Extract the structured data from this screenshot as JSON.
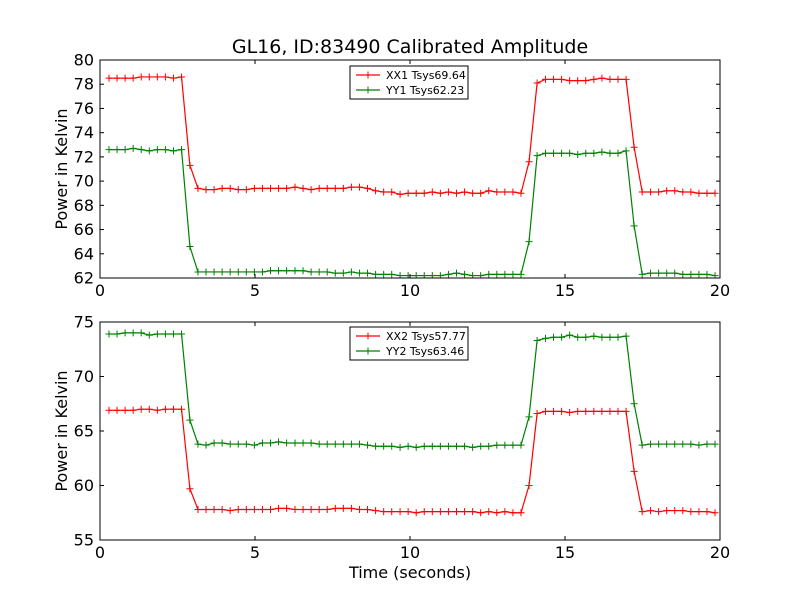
{
  "title": "GL16, ID:83490 Calibrated Amplitude",
  "chart_data": [
    {
      "type": "line",
      "xlabel": "",
      "ylabel": "Power in Kelvin",
      "xlim": [
        0,
        20
      ],
      "ylim": [
        62,
        80
      ],
      "xticks": [
        "0",
        "5",
        "10",
        "15",
        "20"
      ],
      "yticks": [
        "62",
        "64",
        "66",
        "68",
        "70",
        "72",
        "74",
        "76",
        "78",
        "80"
      ],
      "xtick_values": [
        0,
        5,
        10,
        15,
        20
      ],
      "ytick_values": [
        62,
        64,
        66,
        68,
        70,
        72,
        74,
        76,
        78,
        80
      ],
      "legend": "upper center",
      "series": [
        {
          "name": "XX1 Tsys69.64",
          "color": "#ff0000",
          "x": [
            0.29,
            0.55,
            0.81,
            1.07,
            1.33,
            1.59,
            1.85,
            2.11,
            2.37,
            2.63,
            2.9,
            3.16,
            3.42,
            3.68,
            3.94,
            4.2,
            4.46,
            4.72,
            4.98,
            5.24,
            5.5,
            5.76,
            6.02,
            6.29,
            6.55,
            6.81,
            7.07,
            7.33,
            7.59,
            7.85,
            8.11,
            8.37,
            8.63,
            8.89,
            9.15,
            9.41,
            9.68,
            9.94,
            10.2,
            10.46,
            10.72,
            10.98,
            11.24,
            11.5,
            11.76,
            12.02,
            12.28,
            12.54,
            12.8,
            13.06,
            13.32,
            13.58,
            13.84,
            14.1,
            14.37,
            14.63,
            14.89,
            15.15,
            15.41,
            15.67,
            15.93,
            16.19,
            16.45,
            16.71,
            16.97,
            17.23,
            17.49,
            17.76,
            18.02,
            18.28,
            18.54,
            18.8,
            19.06,
            19.32,
            19.58,
            19.84
          ],
          "y": [
            78.5,
            78.5,
            78.5,
            78.5,
            78.6,
            78.6,
            78.6,
            78.6,
            78.5,
            78.6,
            71.3,
            69.4,
            69.3,
            69.3,
            69.4,
            69.4,
            69.3,
            69.3,
            69.4,
            69.4,
            69.4,
            69.4,
            69.4,
            69.5,
            69.4,
            69.3,
            69.4,
            69.4,
            69.4,
            69.4,
            69.5,
            69.5,
            69.4,
            69.2,
            69.1,
            69.1,
            68.9,
            69.0,
            69.0,
            69.0,
            69.1,
            69.0,
            69.1,
            69.0,
            69.1,
            69.0,
            69.0,
            69.2,
            69.1,
            69.1,
            69.1,
            69.0,
            71.6,
            78.1,
            78.4,
            78.4,
            78.4,
            78.3,
            78.3,
            78.3,
            78.4,
            78.5,
            78.4,
            78.4,
            78.4,
            72.8,
            69.1,
            69.1,
            69.1,
            69.2,
            69.2,
            69.1,
            69.1,
            69.0,
            69.0,
            69.0
          ]
        },
        {
          "name": "YY1 Tsys62.23",
          "color": "#008000",
          "x": [
            0.29,
            0.55,
            0.81,
            1.07,
            1.33,
            1.59,
            1.85,
            2.11,
            2.37,
            2.63,
            2.9,
            3.16,
            3.42,
            3.68,
            3.94,
            4.2,
            4.46,
            4.72,
            4.98,
            5.24,
            5.5,
            5.76,
            6.02,
            6.29,
            6.55,
            6.81,
            7.07,
            7.33,
            7.59,
            7.85,
            8.11,
            8.37,
            8.63,
            8.89,
            9.15,
            9.41,
            9.68,
            9.94,
            10.2,
            10.46,
            10.72,
            10.98,
            11.24,
            11.5,
            11.76,
            12.02,
            12.28,
            12.54,
            12.8,
            13.06,
            13.32,
            13.58,
            13.84,
            14.1,
            14.37,
            14.63,
            14.89,
            15.15,
            15.41,
            15.67,
            15.93,
            16.19,
            16.45,
            16.71,
            16.97,
            17.23,
            17.49,
            17.76,
            18.02,
            18.28,
            18.54,
            18.8,
            19.06,
            19.32,
            19.58,
            19.84
          ],
          "y": [
            72.6,
            72.6,
            72.6,
            72.7,
            72.6,
            72.5,
            72.6,
            72.6,
            72.5,
            72.6,
            64.6,
            62.5,
            62.5,
            62.5,
            62.5,
            62.5,
            62.5,
            62.5,
            62.5,
            62.5,
            62.6,
            62.6,
            62.6,
            62.6,
            62.6,
            62.5,
            62.5,
            62.5,
            62.4,
            62.4,
            62.5,
            62.4,
            62.4,
            62.3,
            62.3,
            62.3,
            62.2,
            62.2,
            62.2,
            62.2,
            62.2,
            62.2,
            62.3,
            62.4,
            62.3,
            62.2,
            62.2,
            62.3,
            62.3,
            62.3,
            62.3,
            62.3,
            65.0,
            72.1,
            72.3,
            72.3,
            72.3,
            72.3,
            72.2,
            72.3,
            72.3,
            72.4,
            72.3,
            72.3,
            72.5,
            66.3,
            62.3,
            62.4,
            62.4,
            62.4,
            62.4,
            62.3,
            62.3,
            62.3,
            62.3,
            62.2
          ]
        }
      ]
    },
    {
      "type": "line",
      "xlabel": "Time (seconds)",
      "ylabel": "Power in Kelvin",
      "xlim": [
        0,
        20
      ],
      "ylim": [
        55,
        75
      ],
      "xticks": [
        "0",
        "5",
        "10",
        "15",
        "20"
      ],
      "yticks": [
        "55",
        "60",
        "65",
        "70",
        "75"
      ],
      "xtick_values": [
        0,
        5,
        10,
        15,
        20
      ],
      "ytick_values": [
        55,
        60,
        65,
        70,
        75
      ],
      "legend": "upper center",
      "series": [
        {
          "name": "XX2 Tsys57.77",
          "color": "#ff0000",
          "x": [
            0.29,
            0.55,
            0.81,
            1.07,
            1.33,
            1.59,
            1.85,
            2.11,
            2.37,
            2.63,
            2.9,
            3.16,
            3.42,
            3.68,
            3.94,
            4.2,
            4.46,
            4.72,
            4.98,
            5.24,
            5.5,
            5.76,
            6.02,
            6.29,
            6.55,
            6.81,
            7.07,
            7.33,
            7.59,
            7.85,
            8.11,
            8.37,
            8.63,
            8.89,
            9.15,
            9.41,
            9.68,
            9.94,
            10.2,
            10.46,
            10.72,
            10.98,
            11.24,
            11.5,
            11.76,
            12.02,
            12.28,
            12.54,
            12.8,
            13.06,
            13.32,
            13.58,
            13.84,
            14.1,
            14.37,
            14.63,
            14.89,
            15.15,
            15.41,
            15.67,
            15.93,
            16.19,
            16.45,
            16.71,
            16.97,
            17.23,
            17.49,
            17.76,
            18.02,
            18.28,
            18.54,
            18.8,
            19.06,
            19.32,
            19.58,
            19.84
          ],
          "y": [
            66.9,
            66.9,
            66.9,
            66.9,
            67.0,
            67.0,
            66.9,
            67.0,
            67.0,
            67.0,
            59.7,
            57.8,
            57.8,
            57.8,
            57.8,
            57.7,
            57.8,
            57.8,
            57.8,
            57.8,
            57.8,
            57.9,
            57.9,
            57.8,
            57.8,
            57.8,
            57.8,
            57.8,
            57.9,
            57.9,
            57.9,
            57.8,
            57.8,
            57.7,
            57.6,
            57.6,
            57.6,
            57.6,
            57.5,
            57.6,
            57.6,
            57.6,
            57.6,
            57.6,
            57.6,
            57.6,
            57.5,
            57.6,
            57.5,
            57.6,
            57.5,
            57.5,
            60.0,
            66.6,
            66.8,
            66.8,
            66.8,
            66.7,
            66.8,
            66.8,
            66.8,
            66.8,
            66.8,
            66.8,
            66.8,
            61.3,
            57.6,
            57.7,
            57.6,
            57.7,
            57.7,
            57.7,
            57.6,
            57.6,
            57.6,
            57.5
          ]
        },
        {
          "name": "YY2 Tsys63.46",
          "color": "#008000",
          "x": [
            0.29,
            0.55,
            0.81,
            1.07,
            1.33,
            1.59,
            1.85,
            2.11,
            2.37,
            2.63,
            2.9,
            3.16,
            3.42,
            3.68,
            3.94,
            4.2,
            4.46,
            4.72,
            4.98,
            5.24,
            5.5,
            5.76,
            6.02,
            6.29,
            6.55,
            6.81,
            7.07,
            7.33,
            7.59,
            7.85,
            8.11,
            8.37,
            8.63,
            8.89,
            9.15,
            9.41,
            9.68,
            9.94,
            10.2,
            10.46,
            10.72,
            10.98,
            11.24,
            11.5,
            11.76,
            12.02,
            12.28,
            12.54,
            12.8,
            13.06,
            13.32,
            13.58,
            13.84,
            14.1,
            14.37,
            14.63,
            14.89,
            15.15,
            15.41,
            15.67,
            15.93,
            16.19,
            16.45,
            16.71,
            16.97,
            17.23,
            17.49,
            17.76,
            18.02,
            18.28,
            18.54,
            18.8,
            19.06,
            19.32,
            19.58,
            19.84
          ],
          "y": [
            73.9,
            73.9,
            74.0,
            74.0,
            74.0,
            73.8,
            73.9,
            73.9,
            73.9,
            73.9,
            66.0,
            63.8,
            63.7,
            63.9,
            63.9,
            63.8,
            63.8,
            63.8,
            63.7,
            63.9,
            63.9,
            64.0,
            63.9,
            63.9,
            63.9,
            63.9,
            63.8,
            63.8,
            63.8,
            63.8,
            63.8,
            63.8,
            63.7,
            63.6,
            63.6,
            63.6,
            63.5,
            63.6,
            63.5,
            63.6,
            63.6,
            63.6,
            63.6,
            63.6,
            63.6,
            63.5,
            63.6,
            63.6,
            63.7,
            63.7,
            63.7,
            63.7,
            66.3,
            73.3,
            73.5,
            73.6,
            73.6,
            73.8,
            73.6,
            73.6,
            73.7,
            73.6,
            73.6,
            73.6,
            73.7,
            67.5,
            63.7,
            63.8,
            63.8,
            63.8,
            63.8,
            63.8,
            63.8,
            63.7,
            63.8,
            63.8
          ]
        }
      ]
    }
  ]
}
